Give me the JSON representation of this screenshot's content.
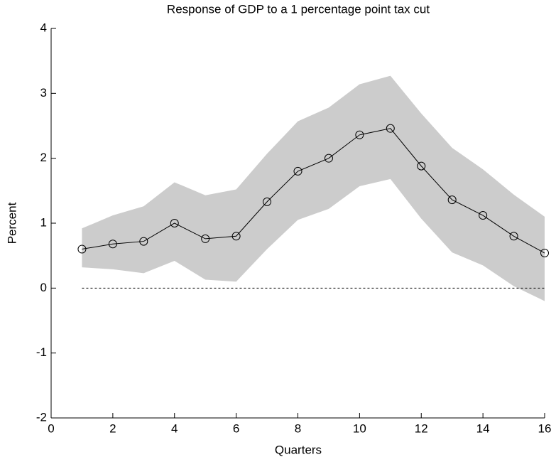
{
  "chart_data": {
    "type": "line",
    "title": "Response of GDP to a 1 percentage point tax cut",
    "xlabel": "Quarters",
    "ylabel": "Percent",
    "x": [
      1,
      2,
      3,
      4,
      5,
      6,
      7,
      8,
      9,
      10,
      11,
      12,
      13,
      14,
      15,
      16
    ],
    "series": [
      {
        "color": "#000000",
        "values": [
          0.6,
          0.68,
          0.72,
          1.0,
          0.76,
          0.8,
          1.33,
          1.8,
          2.0,
          2.36,
          2.46,
          1.88,
          1.36,
          1.12,
          0.8,
          0.54
        ],
        "upper": [
          0.92,
          1.12,
          1.26,
          1.63,
          1.43,
          1.52,
          2.07,
          2.57,
          2.78,
          3.14,
          3.27,
          2.69,
          2.16,
          1.83,
          1.44,
          1.1
        ],
        "lower": [
          0.32,
          0.29,
          0.23,
          0.42,
          0.13,
          0.1,
          0.6,
          1.05,
          1.22,
          1.57,
          1.68,
          1.07,
          0.55,
          0.35,
          0.03,
          -0.2
        ],
        "band_color": "#cccccc"
      }
    ],
    "reference_line": 0,
    "xlim": [
      0,
      16
    ],
    "xticks": [
      0,
      2,
      4,
      6,
      8,
      10,
      12,
      14,
      16
    ],
    "ylim": [
      -2,
      4
    ],
    "yticks": [
      -2,
      -1,
      0,
      1,
      2,
      3,
      4
    ]
  }
}
